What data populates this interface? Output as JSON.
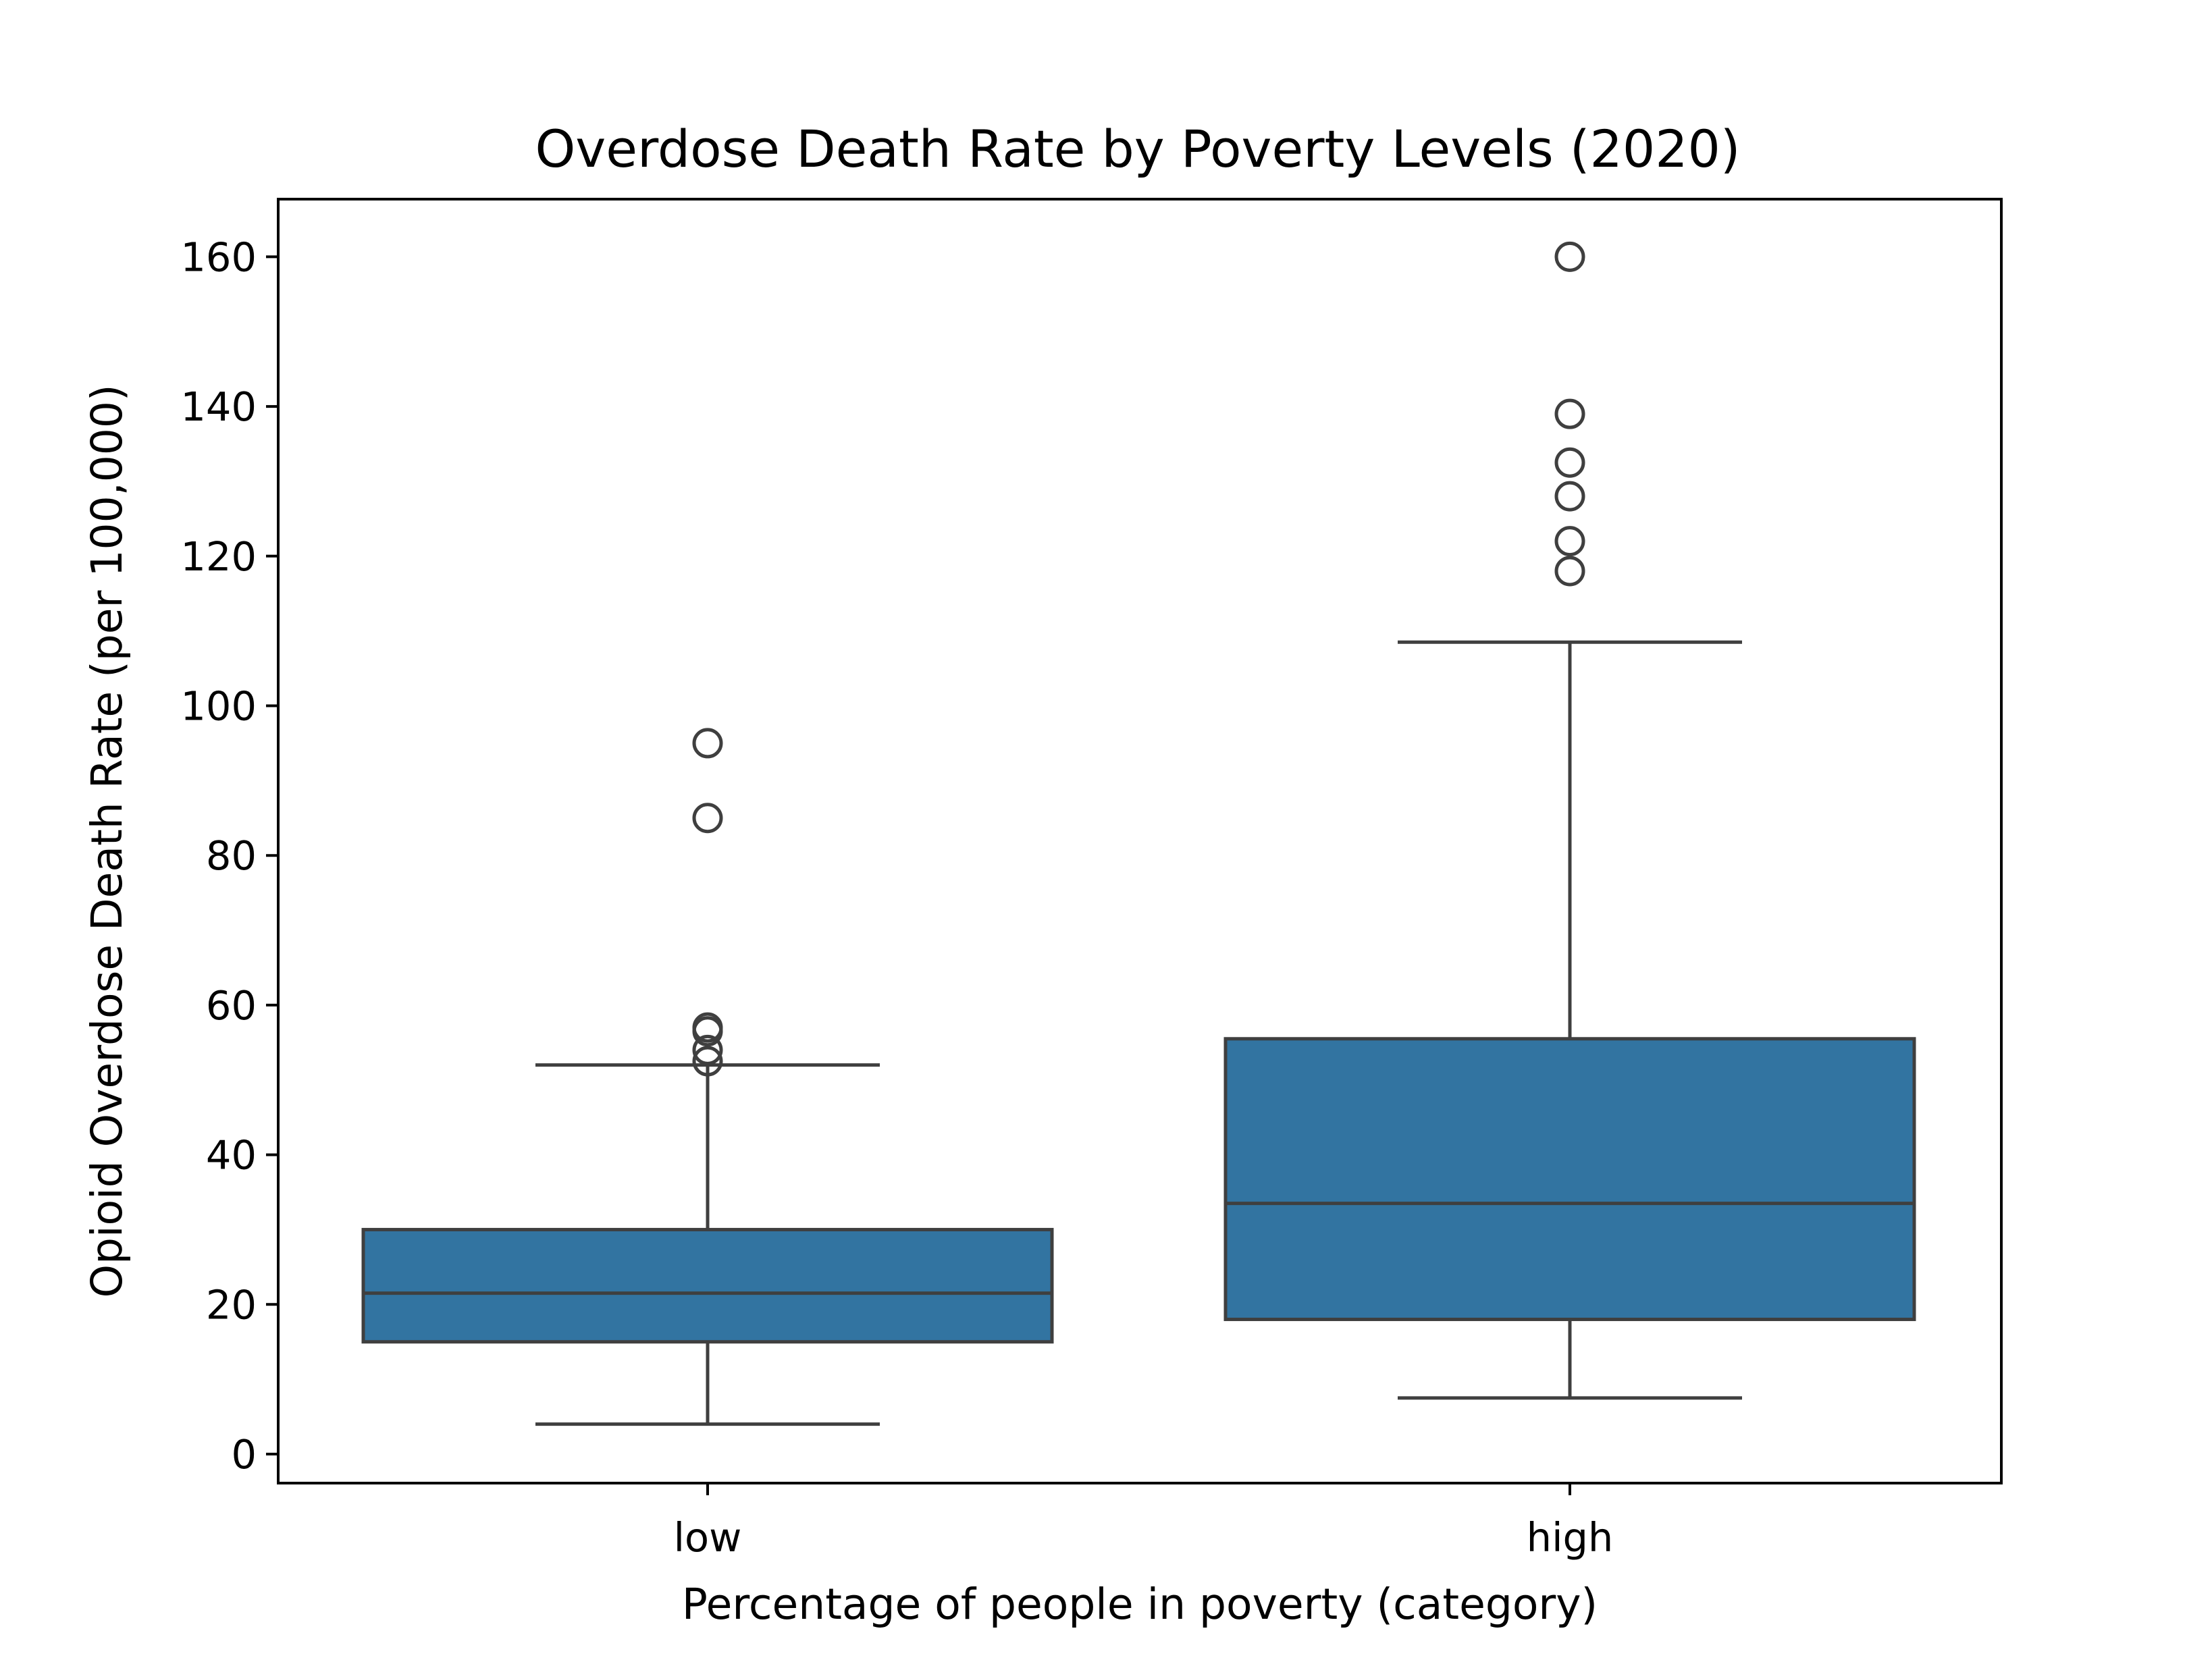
{
  "chart_data": {
    "type": "box",
    "title": "Overdose Death Rate by Poverty Levels (2020)",
    "xlabel": "Percentage of people in poverty (category)",
    "ylabel": "Opioid Overdose Death Rate (per 100,000)",
    "categories": [
      "low",
      "high"
    ],
    "ylim": [
      -4,
      168
    ],
    "yticks": [
      0,
      20,
      40,
      60,
      80,
      100,
      120,
      140,
      160
    ],
    "grid": false,
    "boxes": [
      {
        "category": "low",
        "whisker_low": 4,
        "q1": 15,
        "median": 21.5,
        "q3": 30,
        "whisker_high": 52,
        "outliers": [
          52.5,
          54,
          56.5,
          57,
          85,
          95
        ]
      },
      {
        "category": "high",
        "whisker_low": 7.5,
        "q1": 18,
        "median": 33.5,
        "q3": 55.5,
        "whisker_high": 108.5,
        "outliers": [
          118,
          122,
          128,
          132.5,
          139,
          160
        ]
      }
    ],
    "colors": {
      "box_fill": "#3274a1",
      "box_line": "#3f3f3f",
      "axis": "#000000"
    }
  }
}
